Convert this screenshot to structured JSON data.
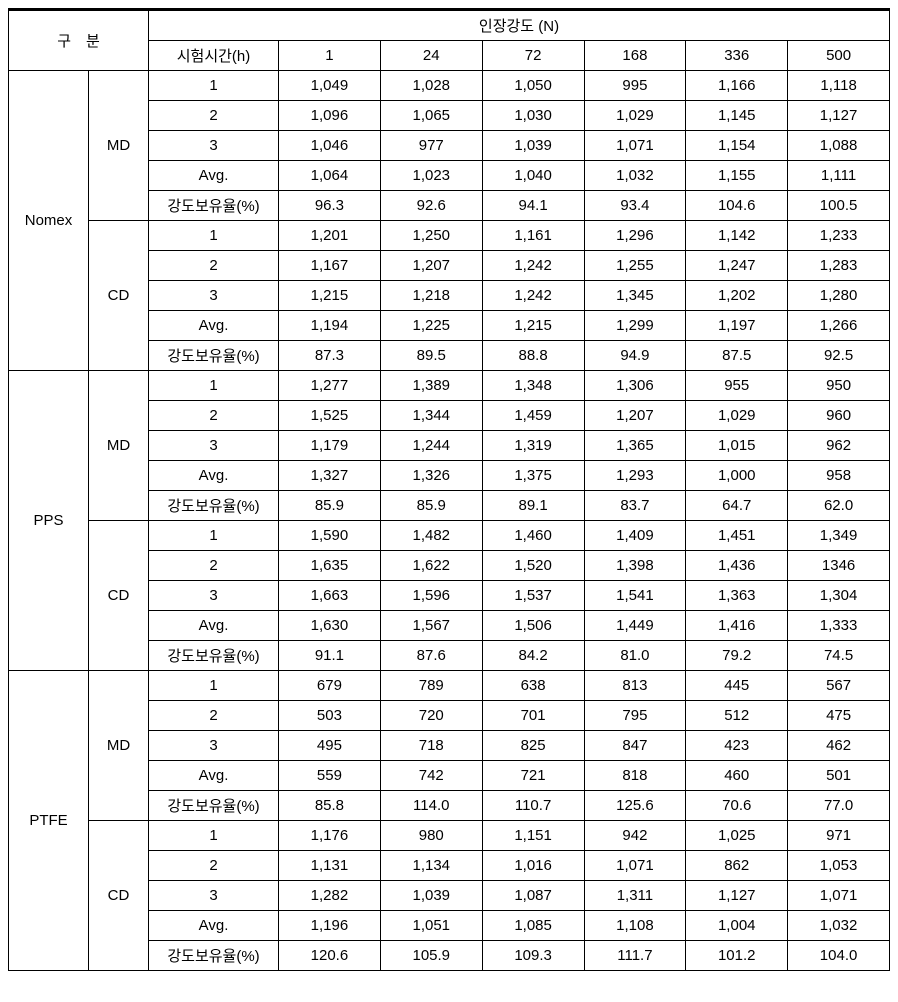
{
  "header": {
    "category": "구　분",
    "main": "인장강도 (N)",
    "timeLabel": "시험시간(h)",
    "times": [
      "1",
      "24",
      "72",
      "168",
      "336",
      "500"
    ]
  },
  "rowLabels": [
    "1",
    "2",
    "3",
    "Avg.",
    "강도보유율(%)"
  ],
  "materials": [
    {
      "name": "Nomex",
      "groups": [
        {
          "name": "MD",
          "rows": [
            [
              "1,049",
              "1,028",
              "1,050",
              "995",
              "1,166",
              "1,118"
            ],
            [
              "1,096",
              "1,065",
              "1,030",
              "1,029",
              "1,145",
              "1,127"
            ],
            [
              "1,046",
              "977",
              "1,039",
              "1,071",
              "1,154",
              "1,088"
            ],
            [
              "1,064",
              "1,023",
              "1,040",
              "1,032",
              "1,155",
              "1,111"
            ],
            [
              "96.3",
              "92.6",
              "94.1",
              "93.4",
              "104.6",
              "100.5"
            ]
          ]
        },
        {
          "name": "CD",
          "rows": [
            [
              "1,201",
              "1,250",
              "1,161",
              "1,296",
              "1,142",
              "1,233"
            ],
            [
              "1,167",
              "1,207",
              "1,242",
              "1,255",
              "1,247",
              "1,283"
            ],
            [
              "1,215",
              "1,218",
              "1,242",
              "1,345",
              "1,202",
              "1,280"
            ],
            [
              "1,194",
              "1,225",
              "1,215",
              "1,299",
              "1,197",
              "1,266"
            ],
            [
              "87.3",
              "89.5",
              "88.8",
              "94.9",
              "87.5",
              "92.5"
            ]
          ]
        }
      ]
    },
    {
      "name": "PPS",
      "groups": [
        {
          "name": "MD",
          "rows": [
            [
              "1,277",
              "1,389",
              "1,348",
              "1,306",
              "955",
              "950"
            ],
            [
              "1,525",
              "1,344",
              "1,459",
              "1,207",
              "1,029",
              "960"
            ],
            [
              "1,179",
              "1,244",
              "1,319",
              "1,365",
              "1,015",
              "962"
            ],
            [
              "1,327",
              "1,326",
              "1,375",
              "1,293",
              "1,000",
              "958"
            ],
            [
              "85.9",
              "85.9",
              "89.1",
              "83.7",
              "64.7",
              "62.0"
            ]
          ]
        },
        {
          "name": "CD",
          "rows": [
            [
              "1,590",
              "1,482",
              "1,460",
              "1,409",
              "1,451",
              "1,349"
            ],
            [
              "1,635",
              "1,622",
              "1,520",
              "1,398",
              "1,436",
              "1346"
            ],
            [
              "1,663",
              "1,596",
              "1,537",
              "1,541",
              "1,363",
              "1,304"
            ],
            [
              "1,630",
              "1,567",
              "1,506",
              "1,449",
              "1,416",
              "1,333"
            ],
            [
              "91.1",
              "87.6",
              "84.2",
              "81.0",
              "79.2",
              "74.5"
            ]
          ]
        }
      ]
    },
    {
      "name": "PTFE",
      "groups": [
        {
          "name": "MD",
          "rows": [
            [
              "679",
              "789",
              "638",
              "813",
              "445",
              "567"
            ],
            [
              "503",
              "720",
              "701",
              "795",
              "512",
              "475"
            ],
            [
              "495",
              "718",
              "825",
              "847",
              "423",
              "462"
            ],
            [
              "559",
              "742",
              "721",
              "818",
              "460",
              "501"
            ],
            [
              "85.8",
              "114.0",
              "110.7",
              "125.6",
              "70.6",
              "77.0"
            ]
          ]
        },
        {
          "name": "CD",
          "rows": [
            [
              "1,176",
              "980",
              "1,151",
              "942",
              "1,025",
              "971"
            ],
            [
              "1,131",
              "1,134",
              "1,016",
              "1,071",
              "862",
              "1,053"
            ],
            [
              "1,282",
              "1,039",
              "1,087",
              "1,311",
              "1,127",
              "1,071"
            ],
            [
              "1,196",
              "1,051",
              "1,085",
              "1,108",
              "1,004",
              "1,032"
            ],
            [
              "120.6",
              "105.9",
              "109.3",
              "111.7",
              "101.2",
              "104.0"
            ]
          ]
        }
      ]
    }
  ]
}
